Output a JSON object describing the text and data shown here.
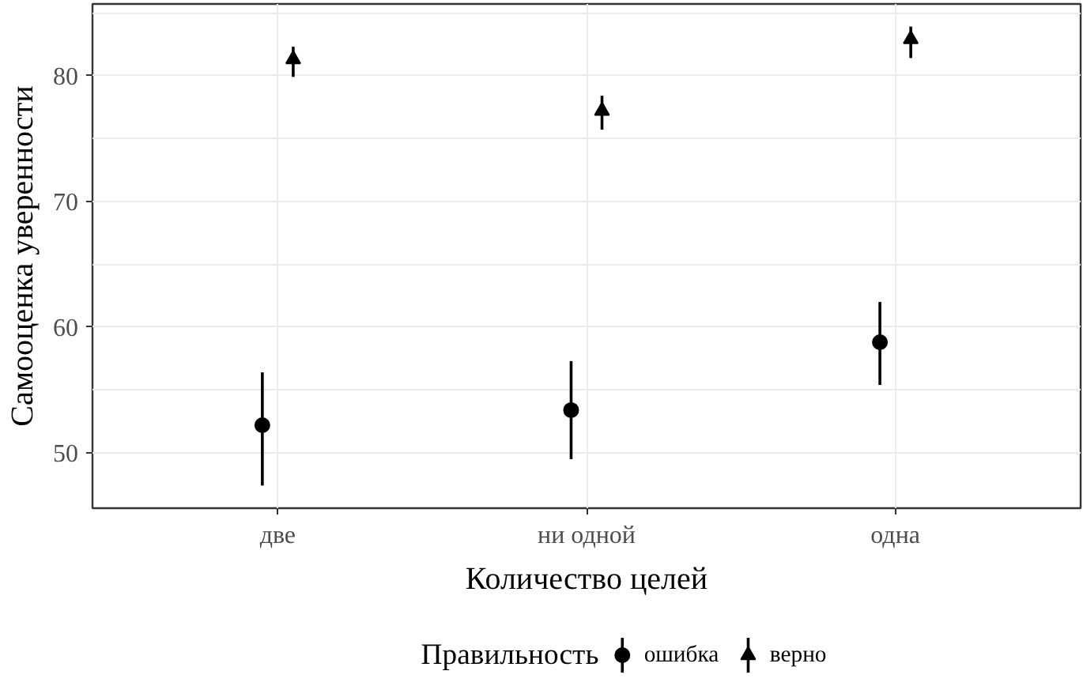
{
  "chart_data": {
    "type": "scatter",
    "xlabel": "Количество целей",
    "ylabel": "Самооценка уверенности",
    "legend_title": "Правильность",
    "legend": "bottom",
    "grid": true,
    "categories": [
      "две",
      "ни одной",
      "одна"
    ],
    "ylim": [
      45.6,
      85.7
    ],
    "yticks": [
      50,
      60,
      70,
      80
    ],
    "series": [
      {
        "name": "ошибка",
        "color": "#000000",
        "marker": "circle",
        "values": [
          52.2,
          53.4,
          58.8
        ],
        "errors": [
          [
            47.4,
            56.4
          ],
          [
            49.5,
            57.3
          ],
          [
            55.4,
            62.0
          ]
        ]
      },
      {
        "name": "верно",
        "color": "#000000",
        "marker": "triangle",
        "values": [
          81.3,
          77.2,
          82.9
        ],
        "errors": [
          [
            79.9,
            82.3
          ],
          [
            75.7,
            78.4
          ],
          [
            81.4,
            83.9
          ]
        ]
      }
    ]
  }
}
